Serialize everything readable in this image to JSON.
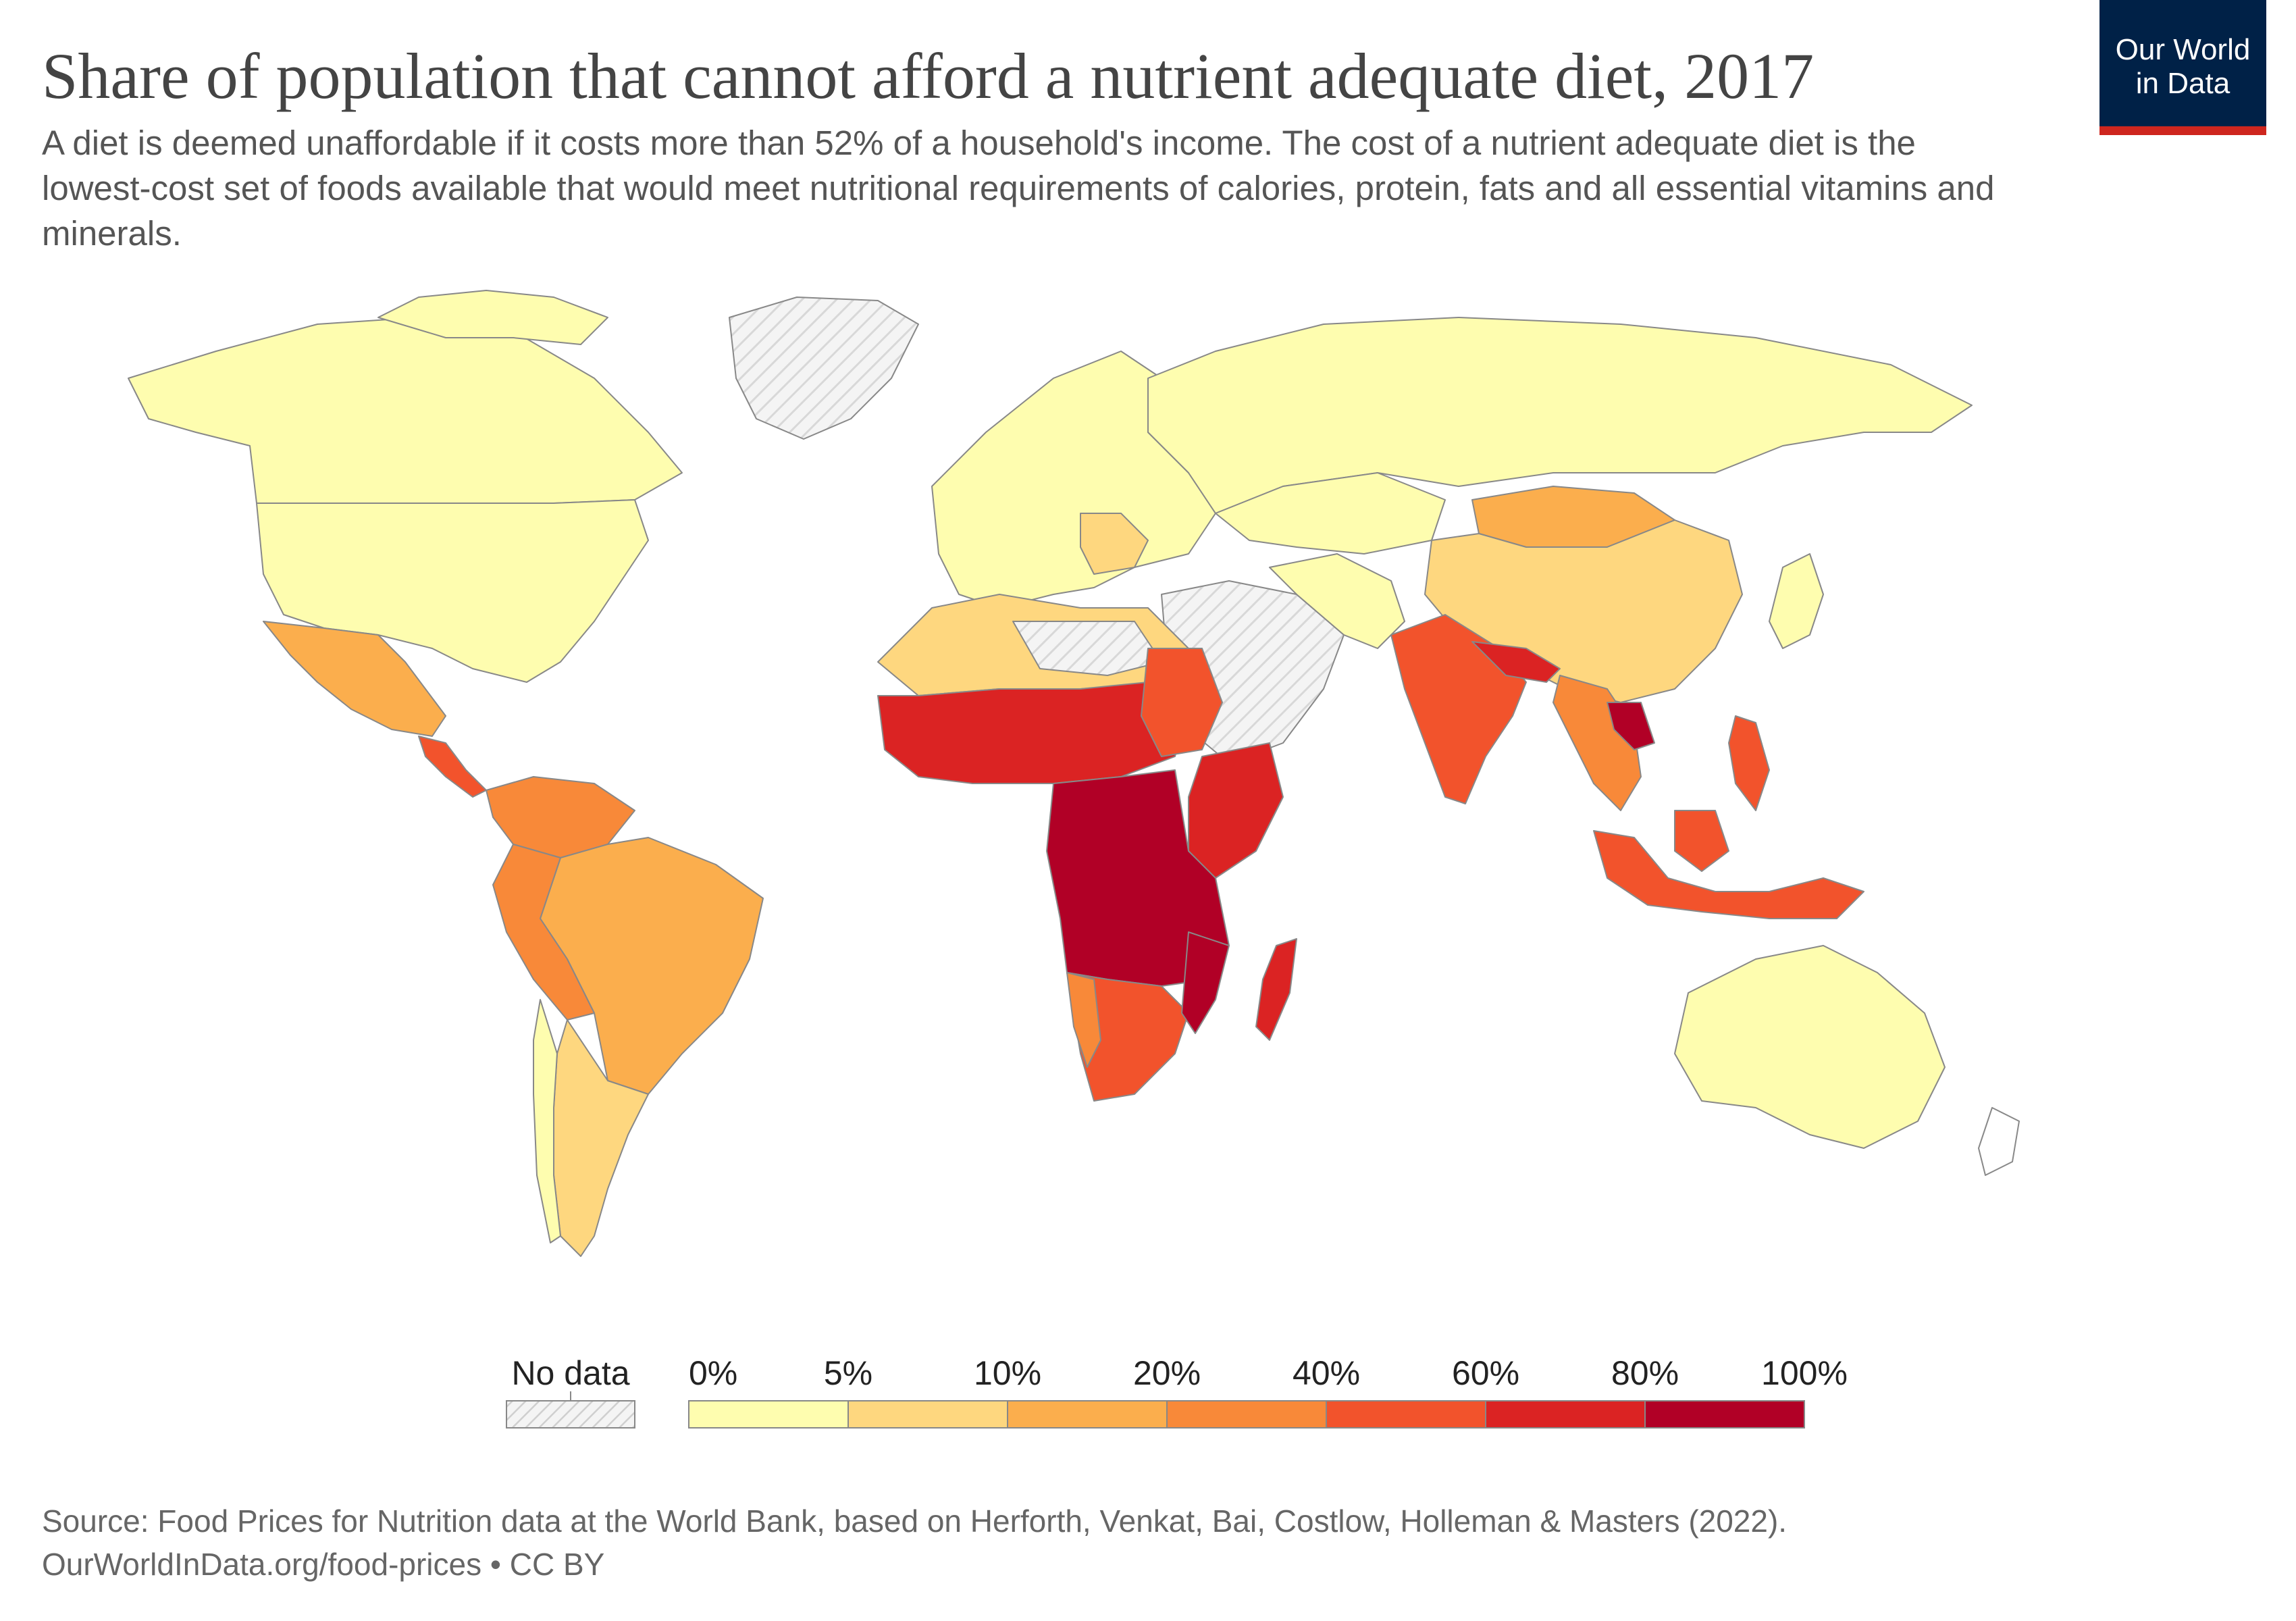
{
  "header": {
    "title": "Share of population that cannot afford a nutrient adequate diet, 2017",
    "subtitle": "A diet is deemed unaffordable if it costs more than 52% of a household's income. The cost of a nutrient adequate diet is the lowest-cost set of foods available that would meet nutritional requirements of calories, protein, fats and all essential vitamins and minerals.",
    "logo_line1": "Our World",
    "logo_line2": "in Data"
  },
  "legend": {
    "no_data_label": "No data",
    "bins": [
      {
        "label": "0%",
        "color": "#fefdaf"
      },
      {
        "label": "5%",
        "color": "#fed77f"
      },
      {
        "label": "10%",
        "color": "#fbae4d"
      },
      {
        "label": "20%",
        "color": "#f88939"
      },
      {
        "label": "40%",
        "color": "#f2532c"
      },
      {
        "label": "60%",
        "color": "#db2323"
      },
      {
        "label": "80%",
        "color": "#b10026"
      }
    ],
    "end_label": "100%",
    "no_data_color": "#eeeeee"
  },
  "footer": {
    "source": "Source: Food Prices for Nutrition data at the World Bank, based on Herforth, Venkat, Bai, Costlow, Holleman & Masters (2022).",
    "link": "OurWorldInData.org/food-prices",
    "license": "CC BY",
    "separator": "•"
  },
  "map": {
    "regions": [
      {
        "name": "Canada",
        "value": "0-5%",
        "color": "#fefdaf"
      },
      {
        "name": "United States",
        "value": "0-5%",
        "color": "#fefdaf"
      },
      {
        "name": "Mexico",
        "value": "10-20%",
        "color": "#fbae4d"
      },
      {
        "name": "Brazil",
        "value": "10-20%",
        "color": "#fbae4d"
      },
      {
        "name": "Argentina",
        "value": "5-10%",
        "color": "#fed77f"
      },
      {
        "name": "Europe",
        "value": "0-5%",
        "color": "#fefdaf"
      },
      {
        "name": "Russia",
        "value": "0-5%",
        "color": "#fefdaf"
      },
      {
        "name": "China",
        "value": "5-10%",
        "color": "#fed77f"
      },
      {
        "name": "Mongolia",
        "value": "10-20%",
        "color": "#fbae4d"
      },
      {
        "name": "India",
        "value": "40-60%",
        "color": "#f2532c"
      },
      {
        "name": "Central Africa",
        "value": "80-100%",
        "color": "#b10026"
      },
      {
        "name": "Madagascar",
        "value": "60-80%",
        "color": "#db2323"
      },
      {
        "name": "Indonesia",
        "value": "40-60%",
        "color": "#f2532c"
      },
      {
        "name": "Australia",
        "value": "0-5%",
        "color": "#fefdaf"
      }
    ]
  }
}
